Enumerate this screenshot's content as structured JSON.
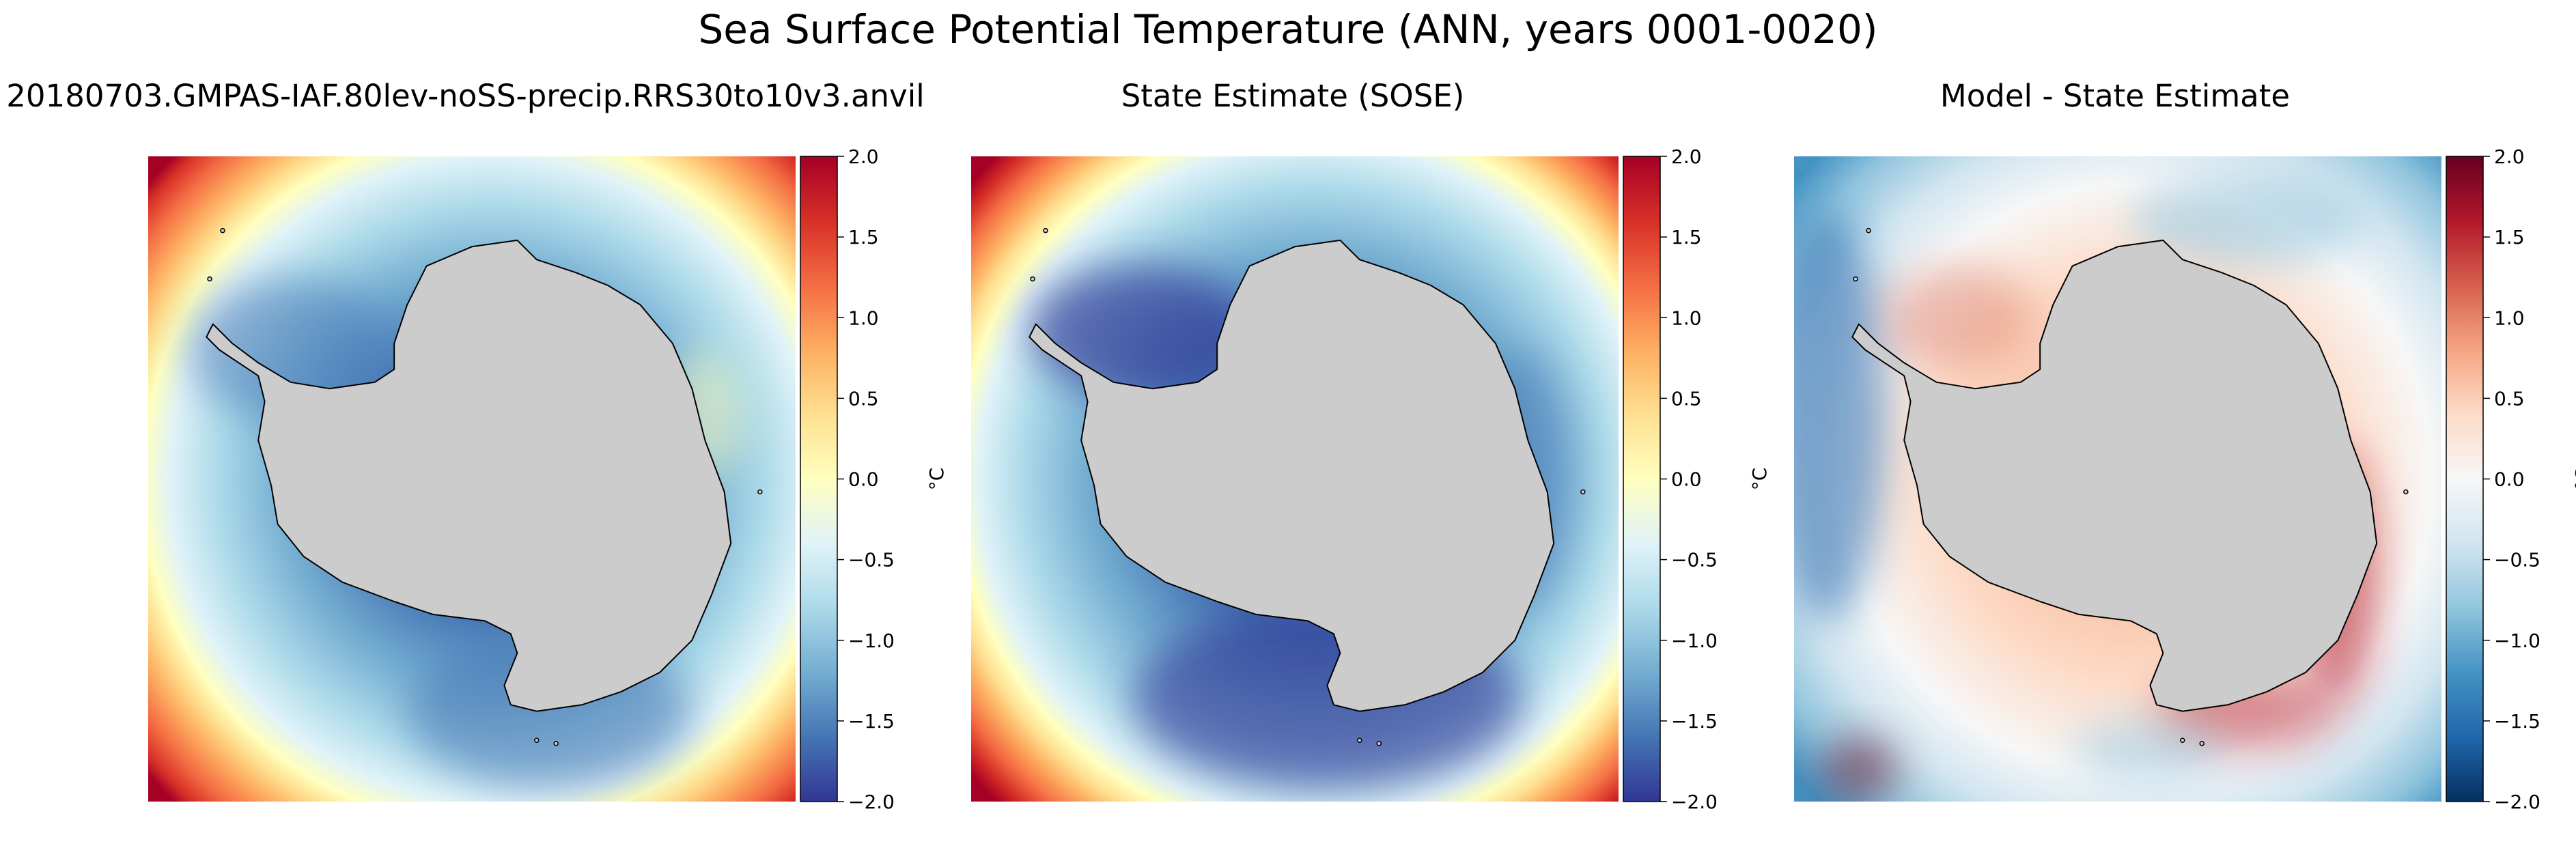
{
  "figure": {
    "title": "Sea Surface Potential Temperature (ANN, years 0001-0020)"
  },
  "chart_data": [
    {
      "type": "heatmap",
      "title": "20180703.GMPAS-IAF.80lev-noSS-precip.RRS30to10v3.anvil",
      "colormap": "RdYlBu_r",
      "colorbar_label": "°C",
      "vmin": -2.0,
      "vmax": 2.0,
      "colorbar_ticks": [
        2.0,
        1.5,
        1.0,
        0.5,
        0.0,
        -0.5,
        -1.0,
        -1.5,
        -2.0
      ],
      "colorbar_tick_labels": [
        "2.0",
        "1.5",
        "1.0",
        "0.5",
        "0.0",
        "−0.5",
        "−1.0",
        "−1.5",
        "−2.0"
      ]
    },
    {
      "type": "heatmap",
      "title": "State Estimate (SOSE)",
      "colormap": "RdYlBu_r",
      "colorbar_label": "°C",
      "vmin": -2.0,
      "vmax": 2.0,
      "colorbar_ticks": [
        2.0,
        1.5,
        1.0,
        0.5,
        0.0,
        -0.5,
        -1.0,
        -1.5,
        -2.0
      ],
      "colorbar_tick_labels": [
        "2.0",
        "1.5",
        "1.0",
        "0.5",
        "0.0",
        "−0.5",
        "−1.0",
        "−1.5",
        "−2.0"
      ]
    },
    {
      "type": "heatmap",
      "title": "Model - State Estimate",
      "colormap": "RdBu_r",
      "colorbar_label": "°C",
      "vmin": -2.0,
      "vmax": 2.0,
      "colorbar_ticks": [
        2.0,
        1.5,
        1.0,
        0.5,
        0.0,
        -0.5,
        -1.0,
        -1.5,
        -2.0
      ],
      "colorbar_tick_labels": [
        "2.0",
        "1.5",
        "1.0",
        "0.5",
        "0.0",
        "−0.5",
        "−1.0",
        "−1.5",
        "−2.0"
      ]
    }
  ],
  "colors": {
    "land": "#cccccc",
    "coastline": "#000000"
  }
}
